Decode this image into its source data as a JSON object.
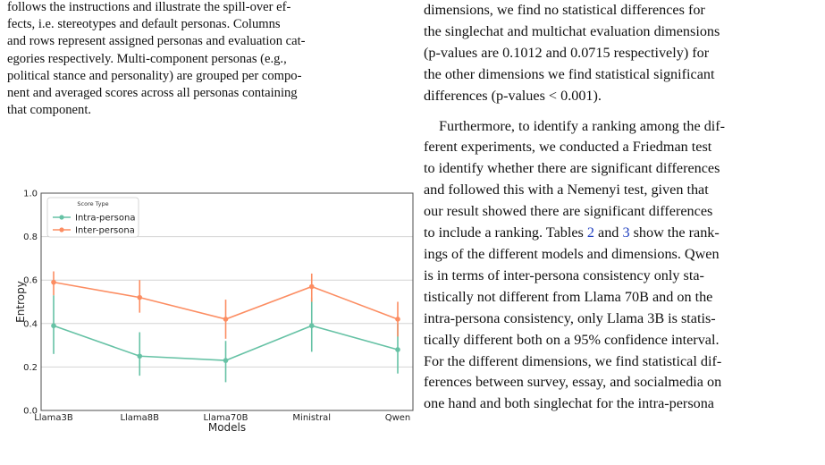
{
  "left_column": {
    "caption_lines": [
      "follows the instructions and illustrate the spill-over ef-",
      "fects, i.e. stereotypes and default personas. Columns",
      "and rows represent assigned personas and evaluation cat-",
      "egories respectively. Multi-component personas (e.g.,",
      "political stance and personality) are grouped per compo-",
      "nent and averaged scores across all personas containing",
      "that component."
    ]
  },
  "right_column": {
    "para1_lines": [
      "dimensions, we find no statistical differences for",
      "the singlechat and multichat evaluation dimensions",
      "(p-values are 0.1012 and 0.0715 respectively) for",
      "the other dimensions we find statistical significant",
      "differences (p-values < 0.001)."
    ],
    "para2": {
      "line1": "Furthermore, to identify a ranking among the dif-",
      "line2": "ferent experiments, we conducted a Friedman test",
      "line3": "to identify whether there are significant differences",
      "line4": "and followed this with a Nemenyi test, given that",
      "line5": "our result showed there are significant differences",
      "line6_pre": "to include a ranking. Tables ",
      "ref_table2": "2",
      "line6_mid": " and ",
      "ref_table3": "3",
      "line6_post": " show the rank-",
      "line7": "ings of the different models and dimensions. Qwen",
      "line8": "is in terms of inter-persona consistency only sta-",
      "line9": "tistically not different from Llama 70B and on the",
      "line10": "intra-persona consistency, only Llama 3B is statis-",
      "line11": "tically different both on a 95% confidence interval.",
      "line12": "For the different dimensions, we find statistical dif-",
      "line13": "ferences between survey, essay, and socialmedia on",
      "line14": "one hand and both singlechat for the intra-persona"
    }
  },
  "chart_data": {
    "type": "line",
    "categories": [
      "Llama3B",
      "Llama8B",
      "Llama70B",
      "Ministral",
      "Qwen"
    ],
    "xlabel": "Models",
    "ylabel": "Entropy",
    "ylim": [
      0.0,
      1.0
    ],
    "yticks": [
      "0.0",
      "0.2",
      "0.4",
      "0.6",
      "0.8",
      "1.0"
    ],
    "grid": "horizontal",
    "legend": {
      "title": "Score Type",
      "placement": "top-left"
    },
    "series": [
      {
        "name": "Intra-persona",
        "color": "#66c2a5",
        "values": [
          0.39,
          0.25,
          0.23,
          0.39,
          0.28
        ],
        "err_low": [
          0.26,
          0.16,
          0.13,
          0.27,
          0.17
        ],
        "err_high": [
          0.53,
          0.36,
          0.32,
          0.52,
          0.4
        ]
      },
      {
        "name": "Inter-persona",
        "color": "#fc8d62",
        "values": [
          0.59,
          0.52,
          0.42,
          0.57,
          0.42
        ],
        "err_low": [
          0.53,
          0.45,
          0.33,
          0.5,
          0.34
        ],
        "err_high": [
          0.64,
          0.6,
          0.51,
          0.63,
          0.5
        ]
      }
    ]
  }
}
